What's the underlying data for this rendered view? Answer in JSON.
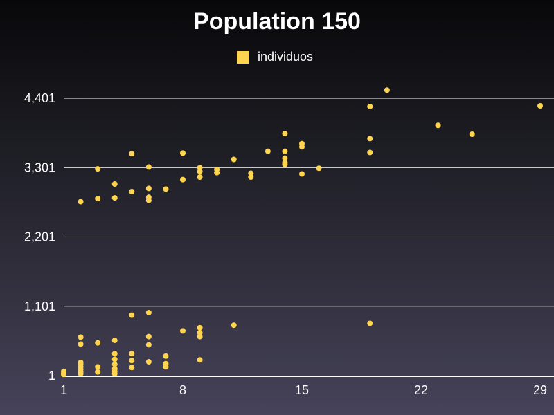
{
  "chart_data": {
    "type": "scatter",
    "title": "Population 150",
    "xlabel": "",
    "ylabel": "",
    "xlim": [
      1,
      29
    ],
    "ylim": [
      1,
      4401
    ],
    "x_ticks": [
      "1",
      "8",
      "15",
      "22",
      "29"
    ],
    "x_tick_values": [
      1,
      8,
      15,
      22,
      29
    ],
    "y_ticks": [
      "1",
      "1,101",
      "2,201",
      "3,301",
      "4,401"
    ],
    "y_tick_values": [
      1,
      1101,
      2201,
      3301,
      4401
    ],
    "grid": "horizontal",
    "legend_position": "top-center",
    "series": [
      {
        "name": "individuos",
        "color": "#ffd54f",
        "points": [
          [
            1,
            20
          ],
          [
            1,
            40
          ],
          [
            1,
            70
          ],
          [
            2,
            30
          ],
          [
            2,
            60
          ],
          [
            2,
            100
          ],
          [
            2,
            140
          ],
          [
            2,
            180
          ],
          [
            2,
            210
          ],
          [
            2,
            500
          ],
          [
            2,
            610
          ],
          [
            3,
            60
          ],
          [
            3,
            140
          ],
          [
            3,
            520
          ],
          [
            4,
            30
          ],
          [
            4,
            70
          ],
          [
            4,
            110
          ],
          [
            4,
            180
          ],
          [
            4,
            260
          ],
          [
            4,
            350
          ],
          [
            4,
            560
          ],
          [
            5,
            130
          ],
          [
            5,
            240
          ],
          [
            5,
            350
          ],
          [
            5,
            960
          ],
          [
            6,
            220
          ],
          [
            6,
            490
          ],
          [
            6,
            620
          ],
          [
            6,
            1000
          ],
          [
            7,
            140
          ],
          [
            7,
            190
          ],
          [
            7,
            310
          ],
          [
            8,
            710
          ],
          [
            9,
            250
          ],
          [
            9,
            620
          ],
          [
            9,
            680
          ],
          [
            9,
            760
          ],
          [
            11,
            800
          ],
          [
            19,
            830
          ],
          [
            2,
            2760
          ],
          [
            3,
            2810
          ],
          [
            3,
            3280
          ],
          [
            4,
            2820
          ],
          [
            4,
            3040
          ],
          [
            5,
            2920
          ],
          [
            5,
            3520
          ],
          [
            6,
            2780
          ],
          [
            6,
            2830
          ],
          [
            6,
            2970
          ],
          [
            6,
            3310
          ],
          [
            7,
            2960
          ],
          [
            8,
            3110
          ],
          [
            8,
            3530
          ],
          [
            9,
            3150
          ],
          [
            9,
            3240
          ],
          [
            9,
            3300
          ],
          [
            10,
            3220
          ],
          [
            10,
            3270
          ],
          [
            11,
            3430
          ],
          [
            12,
            3150
          ],
          [
            12,
            3210
          ],
          [
            13,
            3560
          ],
          [
            14,
            3350
          ],
          [
            14,
            3380
          ],
          [
            14,
            3450
          ],
          [
            14,
            3560
          ],
          [
            14,
            3840
          ],
          [
            15,
            3200
          ],
          [
            15,
            3630
          ],
          [
            15,
            3680
          ],
          [
            16,
            3290
          ],
          [
            19,
            3540
          ],
          [
            19,
            3760
          ],
          [
            19,
            4270
          ],
          [
            20,
            4530
          ],
          [
            23,
            3970
          ],
          [
            25,
            3830
          ],
          [
            29,
            4280
          ]
        ]
      }
    ]
  }
}
